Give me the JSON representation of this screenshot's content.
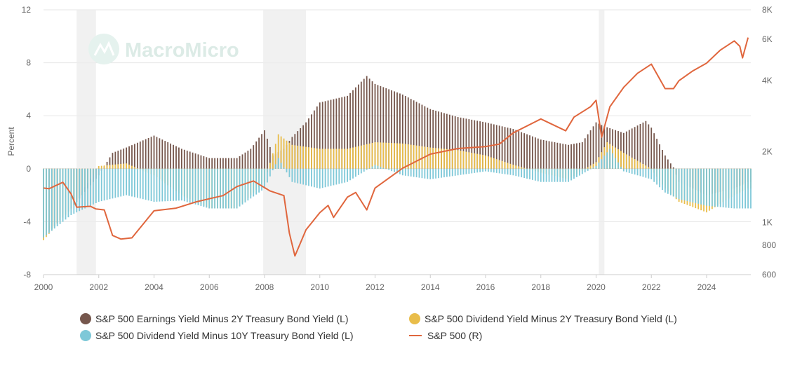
{
  "chart_data": {
    "type": "bar",
    "title": "",
    "xlabel": "",
    "ylabel": "Percent",
    "right_axis_label": "",
    "watermark": "MacroMicro",
    "xlim": [
      2000,
      2025.6
    ],
    "ylim": [
      -8,
      12
    ],
    "y_ticks": [
      12,
      8,
      4,
      0,
      -4,
      -8
    ],
    "x_ticks": [
      "2000",
      "2002",
      "2004",
      "2006",
      "2008",
      "2010",
      "2012",
      "2014",
      "2016",
      "2018",
      "2020",
      "2022",
      "2024"
    ],
    "right_axis": {
      "scale": "log",
      "range": [
        600,
        8000
      ],
      "ticks": [
        "8K",
        "6K",
        "4K",
        "2K",
        "1K",
        "800",
        "600"
      ],
      "tick_values": [
        8000,
        6000,
        4000,
        2000,
        1000,
        800,
        600
      ]
    },
    "grid": true,
    "legend_position": "bottom",
    "recession_shading": [
      [
        2001.2,
        2001.9
      ],
      [
        2007.95,
        2009.5
      ],
      [
        2020.1,
        2020.3
      ]
    ],
    "series": [
      {
        "name": "S&P 500 Earnings Yield Minus 2Y Treasury Bond Yield (L)",
        "kind": "bar",
        "color": "#76574d",
        "x": [
          2000,
          2001,
          2002,
          2002.5,
          2003,
          2004,
          2005,
          2006,
          2007,
          2007.5,
          2008,
          2008.3,
          2008.7,
          2009,
          2009.5,
          2010,
          2011,
          2011.7,
          2012,
          2013,
          2014,
          2015,
          2016,
          2017,
          2018,
          2019,
          2019.5,
          2020,
          2020.3,
          2021,
          2021.8,
          2022,
          2022.5,
          2022.8,
          2023,
          2024,
          2025,
          2025.5
        ],
        "y": [
          -5.2,
          -3,
          -0.5,
          1.2,
          1.6,
          2.5,
          1.5,
          0.8,
          0.8,
          1.5,
          2.9,
          1,
          1.5,
          2.4,
          3.5,
          5,
          5.5,
          7,
          6.4,
          5.6,
          4.5,
          3.9,
          3.5,
          3,
          2.2,
          1.8,
          2,
          3.5,
          3.2,
          2.7,
          3.6,
          3.1,
          1,
          0.1,
          -1,
          -2,
          -1.5,
          -1
        ]
      },
      {
        "name": "S&P 500 Dividend Yield Minus 2Y Treasury Bond Yield (L)",
        "kind": "bar",
        "color": "#e9bd4a",
        "x": [
          2000,
          2001,
          2002,
          2003,
          2004,
          2005,
          2006,
          2007,
          2008,
          2008.5,
          2009,
          2010,
          2011,
          2012,
          2013,
          2014,
          2015,
          2016,
          2017,
          2018,
          2019,
          2020,
          2020.4,
          2021,
          2022,
          2022.5,
          2023,
          2024,
          2025,
          2025.5
        ],
        "y": [
          -5.4,
          -3,
          0.2,
          0.4,
          -0.5,
          -2,
          -3,
          -3,
          -1,
          2.6,
          1.8,
          1.5,
          1.5,
          2,
          1.9,
          1.6,
          1.4,
          1,
          0.3,
          -0.3,
          -0.8,
          0.5,
          2,
          1.2,
          0,
          -1.5,
          -2.5,
          -3.3,
          -2,
          -1.5
        ]
      },
      {
        "name": "S&P 500 Dividend Yield Minus 10Y Treasury Bond Yield (L)",
        "kind": "bar",
        "color": "#7ec8d8",
        "x": [
          2000,
          2001,
          2002,
          2003,
          2004,
          2005,
          2006,
          2007,
          2008,
          2008.5,
          2009,
          2010,
          2011,
          2012,
          2013,
          2014,
          2015,
          2016,
          2017,
          2018,
          2019,
          2020,
          2020.5,
          2021,
          2022,
          2022.5,
          2023,
          2024,
          2025,
          2025.5
        ],
        "y": [
          -5.2,
          -3.5,
          -2.5,
          -2,
          -2.5,
          -2.4,
          -3,
          -3,
          -1.5,
          0.8,
          -1,
          -1.5,
          -1,
          0.3,
          -0.5,
          -0.8,
          -0.5,
          -0.2,
          -0.5,
          -1,
          -1,
          0.2,
          1.5,
          -0.2,
          -0.8,
          -1.8,
          -2.3,
          -2.8,
          -3,
          -3
        ]
      },
      {
        "name": "S&P 500 (R)",
        "kind": "line",
        "color": "#e0663d",
        "x": [
          2000,
          2000.2,
          2000.7,
          2001,
          2001.2,
          2001.7,
          2001.9,
          2002.2,
          2002.5,
          2002.8,
          2003.2,
          2004,
          2004.8,
          2005.5,
          2006,
          2006.5,
          2007,
          2007.6,
          2008.2,
          2008.7,
          2008.9,
          2009.1,
          2009.5,
          2010,
          2010.3,
          2010.5,
          2011,
          2011.3,
          2011.7,
          2012,
          2013,
          2014,
          2015,
          2016,
          2016.5,
          2017,
          2018,
          2018.9,
          2019.2,
          2019.8,
          2020,
          2020.2,
          2020.5,
          2021,
          2021.5,
          2022,
          2022.5,
          2022.8,
          2023,
          2023.5,
          2024,
          2024.5,
          2025,
          2025.2,
          2025.3,
          2025.5
        ],
        "y": [
          1400,
          1390,
          1480,
          1320,
          1160,
          1170,
          1140,
          1130,
          880,
          850,
          860,
          1120,
          1150,
          1220,
          1260,
          1300,
          1420,
          1500,
          1360,
          1300,
          900,
          720,
          930,
          1100,
          1180,
          1050,
          1280,
          1340,
          1130,
          1400,
          1700,
          1950,
          2060,
          2100,
          2150,
          2400,
          2750,
          2450,
          2800,
          3100,
          3300,
          2300,
          3100,
          3750,
          4300,
          4700,
          3700,
          3700,
          4000,
          4400,
          4750,
          5400,
          5900,
          5600,
          5000,
          6100
        ]
      }
    ]
  }
}
